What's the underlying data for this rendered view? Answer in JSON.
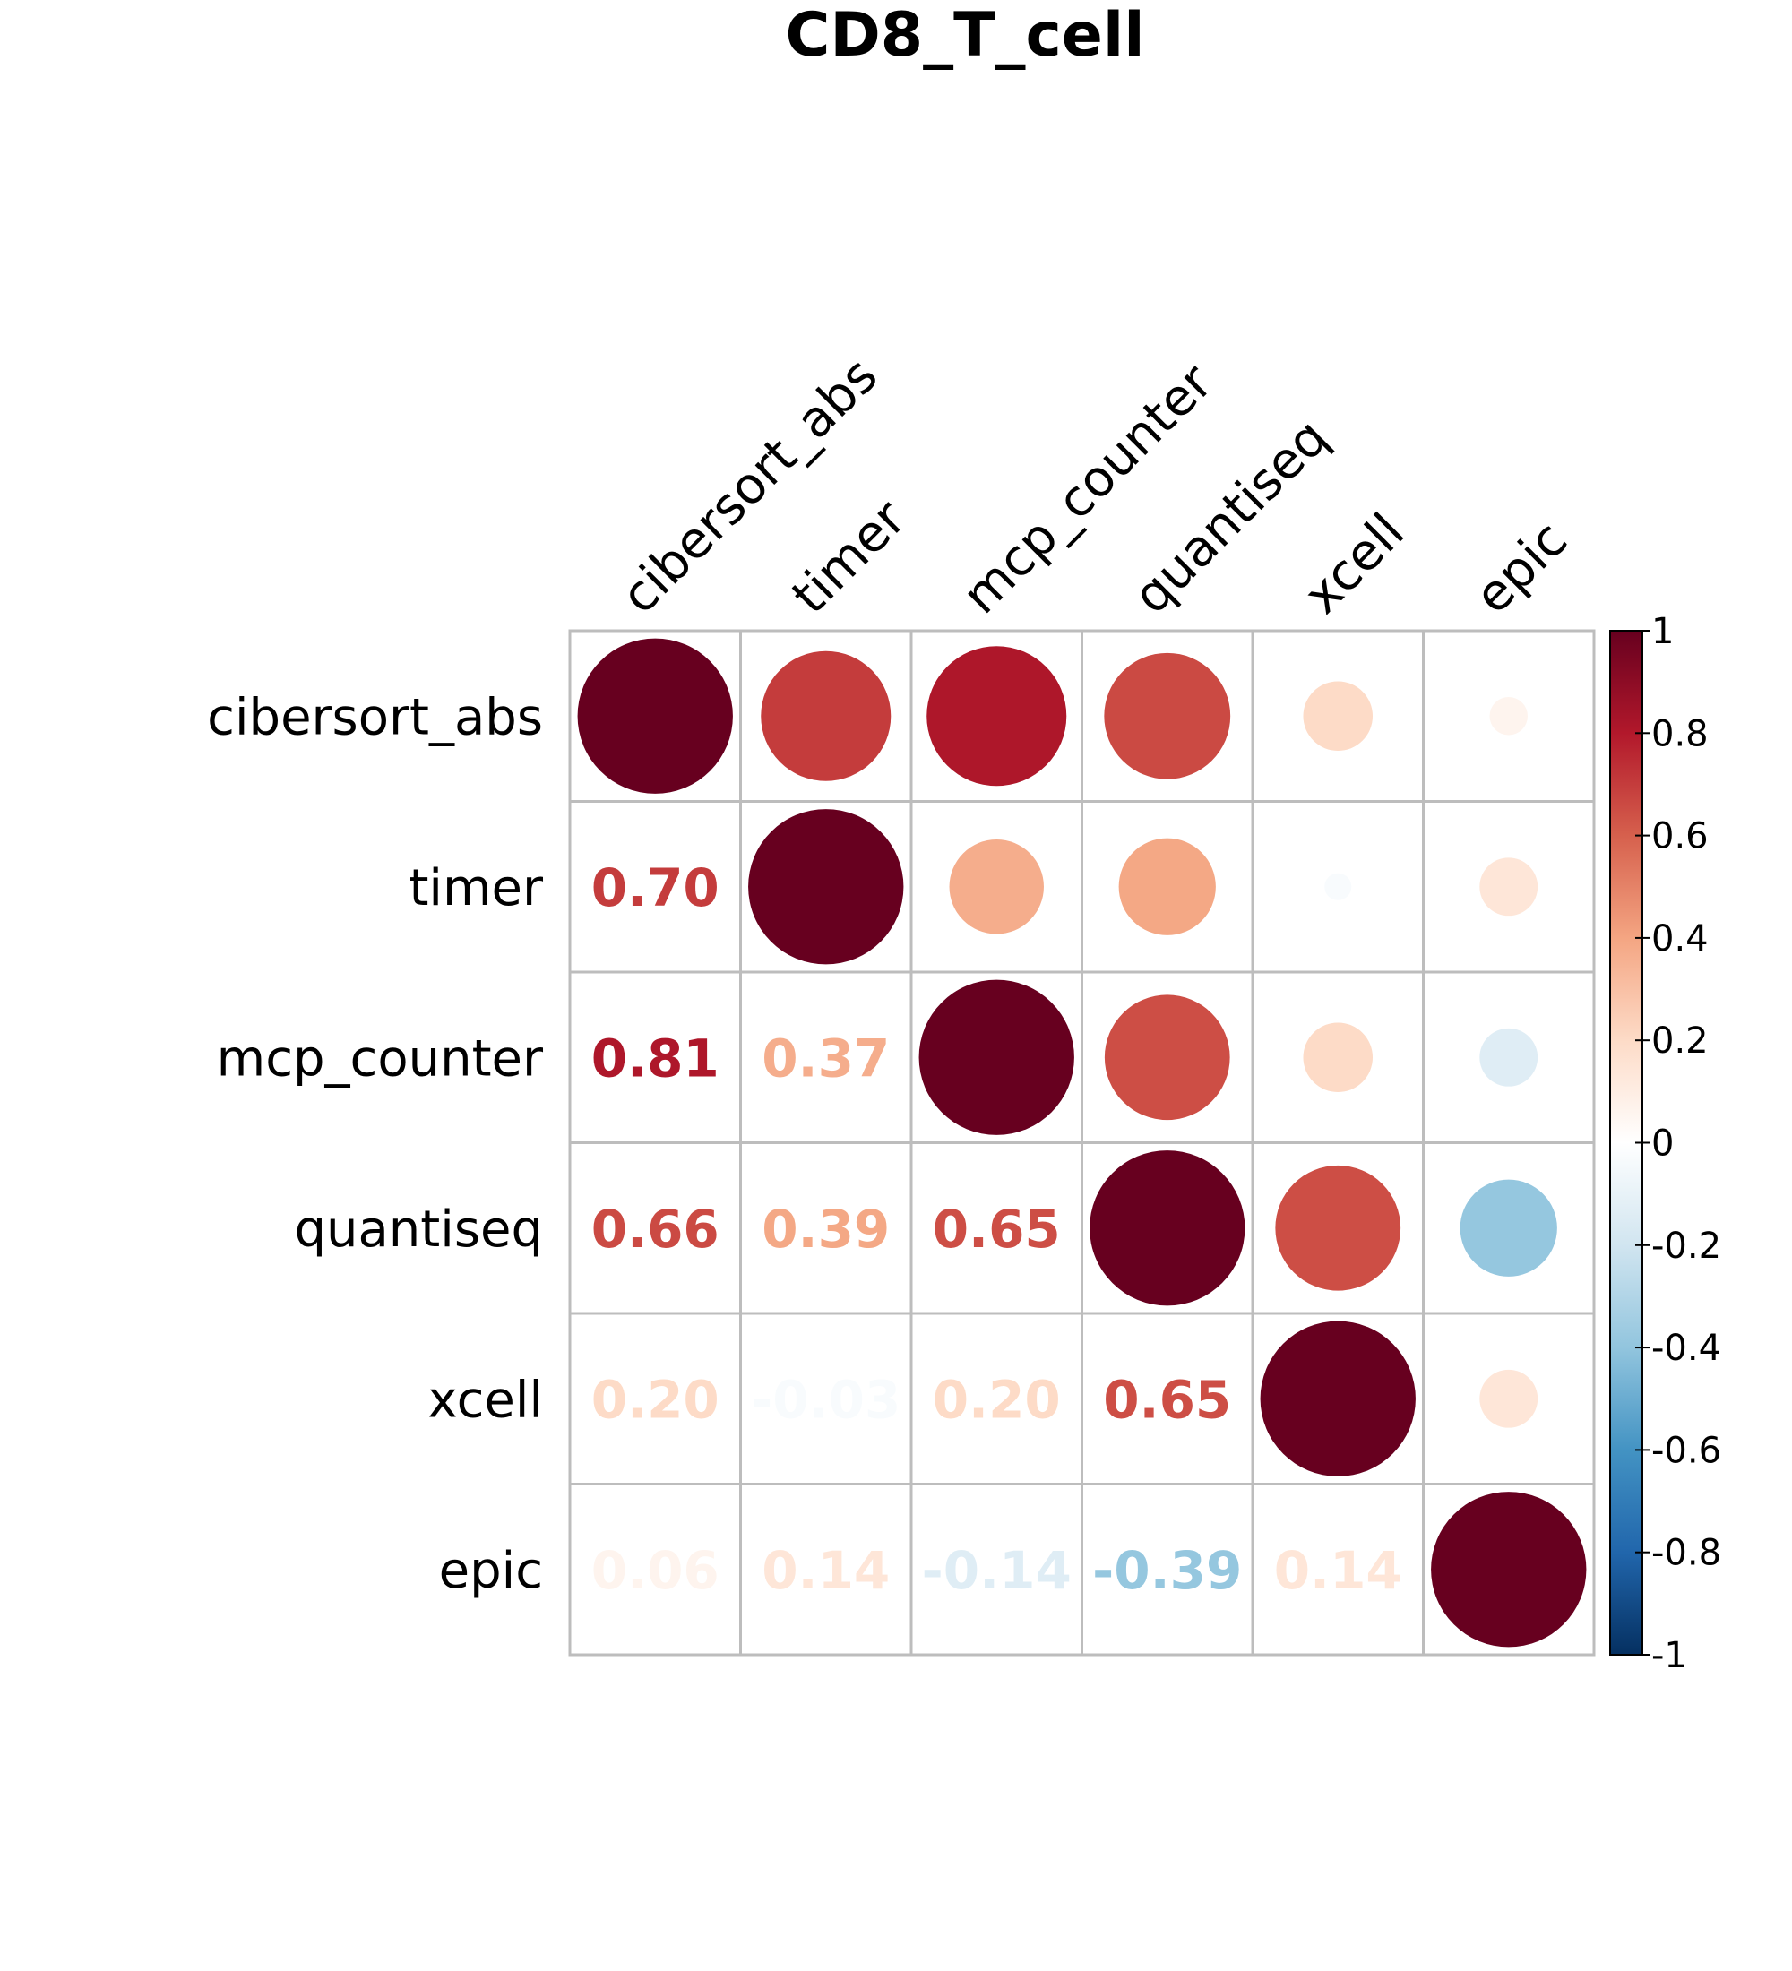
{
  "chart_data": {
    "type": "heatmap",
    "title": "CD8_T_cell",
    "labels": [
      "cibersort_abs",
      "timer",
      "mcp_counter",
      "quantiseq",
      "xcell",
      "epic"
    ],
    "matrix": [
      [
        1.0,
        0.7,
        0.81,
        0.66,
        0.2,
        0.06
      ],
      [
        0.7,
        1.0,
        0.37,
        0.39,
        -0.03,
        0.14
      ],
      [
        0.81,
        0.37,
        1.0,
        0.65,
        0.2,
        -0.14
      ],
      [
        0.66,
        0.39,
        0.65,
        1.0,
        0.65,
        -0.39
      ],
      [
        0.2,
        -0.03,
        0.2,
        0.65,
        1.0,
        0.14
      ],
      [
        0.06,
        0.14,
        -0.14,
        -0.39,
        0.14,
        1.0
      ]
    ],
    "upper_triangle": "circle",
    "lower_triangle": "number",
    "value_range": [
      -1,
      1
    ],
    "colorbar_ticks": [
      "1",
      "0.8",
      "0.6",
      "0.4",
      "0.2",
      "0",
      "-0.2",
      "-0.4",
      "-0.6",
      "-0.8",
      "-1"
    ],
    "colormap": [
      "#053061",
      "#2166ac",
      "#4393c3",
      "#92c5de",
      "#d1e5f0",
      "#ffffff",
      "#fddbc7",
      "#f4a582",
      "#d6604d",
      "#b2182b",
      "#67001f"
    ]
  }
}
